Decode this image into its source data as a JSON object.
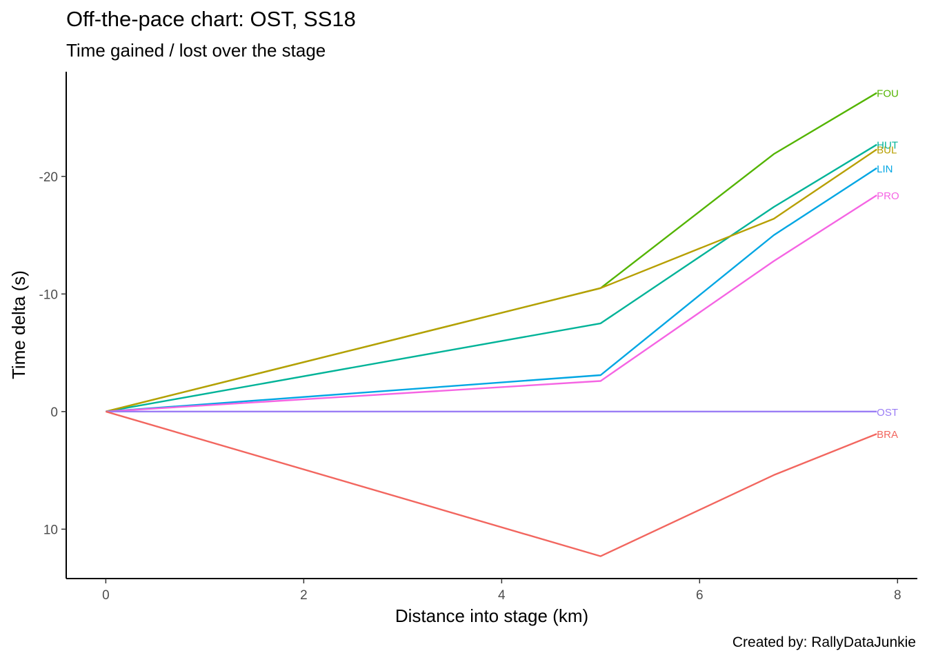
{
  "chart_data": {
    "type": "line",
    "title": "Off-the-pace chart: OST, SS18",
    "subtitle": "Time gained / lost over the stage",
    "caption": "Created by: RallyDataJunkie",
    "xlabel": "Distance into stage (km)",
    "ylabel": "Time delta (s)",
    "xlim": [
      -0.4,
      8.2
    ],
    "ylim": [
      14.2,
      -28.9
    ],
    "y_reversed": true,
    "x_ticks": [
      0,
      2,
      4,
      6,
      8
    ],
    "x_tick_labels": [
      "0",
      "2",
      "4",
      "6",
      "8"
    ],
    "y_ticks": [
      -20,
      -10,
      0,
      10
    ],
    "y_tick_labels": [
      "-20",
      "-10",
      "0",
      "10"
    ],
    "grid": false,
    "legend": "none",
    "x": [
      0,
      5.0,
      6.75,
      7.79
    ],
    "series": [
      {
        "name": "FOU",
        "color": "#53B400",
        "values": [
          0,
          -10.5,
          -21.9,
          -27.1
        ]
      },
      {
        "name": "HUT",
        "color": "#00B398",
        "values": [
          0,
          -7.5,
          -17.4,
          -22.7
        ]
      },
      {
        "name": "BUL",
        "color": "#B79F00",
        "values": [
          0,
          -10.5,
          -16.4,
          -22.3
        ]
      },
      {
        "name": "LIN",
        "color": "#00A6E3",
        "values": [
          0,
          -3.1,
          -15.0,
          -20.7
        ]
      },
      {
        "name": "PRO",
        "color": "#F564E3",
        "values": [
          0,
          -2.6,
          -12.8,
          -18.4
        ]
      },
      {
        "name": "OST",
        "color": "#9A7CF5",
        "values": [
          0,
          0,
          0,
          0
        ]
      },
      {
        "name": "BRA",
        "color": "#F2665F",
        "values": [
          0,
          12.3,
          5.4,
          1.9
        ]
      }
    ]
  }
}
